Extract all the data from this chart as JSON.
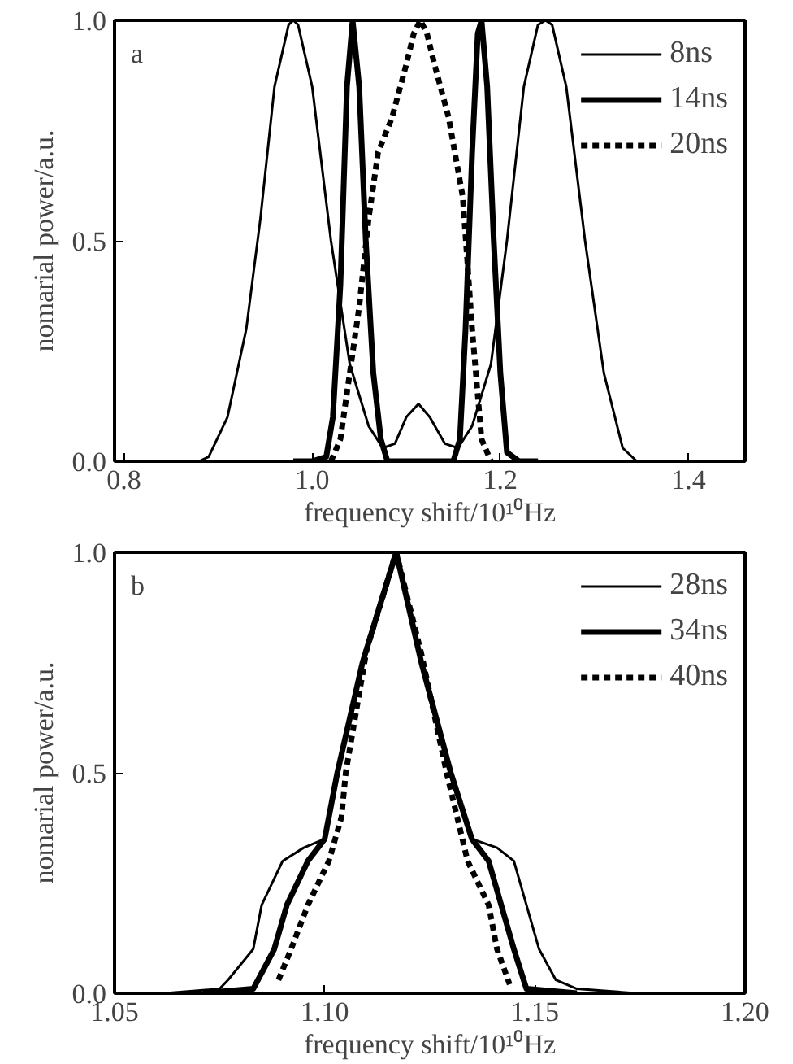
{
  "chart_data": [
    {
      "type": "line",
      "xlabel": "frequency shift/10¹⁰Hz",
      "ylabel": "nomarial power/a.u.",
      "annotations": [
        "a"
      ],
      "xlim": [
        0.79,
        1.46
      ],
      "ylim": [
        0,
        1
      ],
      "xticks": [
        {
          "value": 0.8,
          "label": "0.8"
        },
        {
          "value": 1.0,
          "label": "1.0"
        },
        {
          "value": 1.2,
          "label": "1.2"
        },
        {
          "value": 1.4,
          "label": "1.4"
        }
      ],
      "yticks": [
        {
          "value": 0,
          "label": "0.0"
        },
        {
          "value": 0.5,
          "label": "0.5"
        },
        {
          "value": 1,
          "label": "1.0"
        }
      ],
      "grid": false,
      "legend": "top right",
      "series": [
        {
          "name": "8ns",
          "color": "#000000",
          "line_style": "solid",
          "x": [
            0.85,
            0.88,
            0.89,
            0.91,
            0.93,
            0.945,
            0.96,
            0.975,
            0.98,
            0.985,
            1.0,
            1.02,
            1.04,
            1.06,
            1.075,
            1.088,
            1.1,
            1.113,
            1.125,
            1.141,
            1.155,
            1.17,
            1.19,
            1.207,
            1.225,
            1.24,
            1.248,
            1.255,
            1.27,
            1.29,
            1.31,
            1.33,
            1.345,
            1.39
          ],
          "values": [
            0,
            0,
            0.01,
            0.1,
            0.3,
            0.55,
            0.85,
            0.99,
            1.0,
            0.99,
            0.85,
            0.5,
            0.22,
            0.08,
            0.03,
            0.04,
            0.1,
            0.13,
            0.1,
            0.04,
            0.03,
            0.08,
            0.22,
            0.5,
            0.85,
            0.99,
            1.0,
            0.99,
            0.85,
            0.5,
            0.2,
            0.03,
            0.0,
            0
          ]
        },
        {
          "name": "14ns",
          "color": "#000000",
          "line_style": "solid",
          "x": [
            0.98,
            1.0,
            1.015,
            1.022,
            1.03,
            1.037,
            1.043,
            1.05,
            1.057,
            1.065,
            1.073,
            1.08,
            1.09,
            1.15,
            1.157,
            1.163,
            1.17,
            1.176,
            1.18,
            1.186,
            1.193,
            1.2,
            1.207,
            1.22,
            1.24
          ],
          "values": [
            0,
            0,
            0.01,
            0.1,
            0.4,
            0.85,
            1.0,
            0.85,
            0.5,
            0.2,
            0.05,
            0,
            0,
            0,
            0.05,
            0.3,
            0.7,
            0.97,
            1.0,
            0.85,
            0.5,
            0.2,
            0.02,
            0,
            0
          ]
        },
        {
          "name": "20ns",
          "color": "#000000",
          "line_style": "dotted",
          "x": [
            1.02,
            1.03,
            1.04,
            1.05,
            1.06,
            1.07,
            1.085,
            1.1,
            1.108,
            1.115,
            1.122,
            1.13,
            1.145,
            1.16,
            1.17,
            1.18,
            1.19
          ],
          "values": [
            0,
            0.05,
            0.2,
            0.35,
            0.55,
            0.7,
            0.78,
            0.9,
            0.97,
            1.0,
            0.97,
            0.9,
            0.78,
            0.6,
            0.3,
            0.05,
            0
          ]
        }
      ]
    },
    {
      "type": "line",
      "xlabel": "frequency shift/10¹⁰Hz",
      "ylabel": "nomarial power/a.u.",
      "annotations": [
        "b"
      ],
      "xlim": [
        1.05,
        1.2
      ],
      "ylim": [
        0,
        1
      ],
      "xticks": [
        {
          "value": 1.05,
          "label": "1.05"
        },
        {
          "value": 1.1,
          "label": "1.10"
        },
        {
          "value": 1.15,
          "label": "1.15"
        },
        {
          "value": 1.2,
          "label": "1.20"
        }
      ],
      "yticks": [
        {
          "value": 0,
          "label": "0.0"
        },
        {
          "value": 0.5,
          "label": "0.5"
        },
        {
          "value": 1,
          "label": "1.0"
        }
      ],
      "grid": false,
      "legend": "top right",
      "series": [
        {
          "name": "28ns",
          "color": "#000000",
          "line_style": "solid",
          "x": [
            1.062,
            1.075,
            1.077,
            1.083,
            1.085,
            1.09,
            1.095,
            1.1,
            1.103,
            1.109,
            1.117,
            1.123,
            1.13,
            1.135,
            1.141,
            1.145,
            1.148,
            1.151,
            1.155,
            1.16,
            1.174
          ],
          "values": [
            0,
            0.01,
            0.03,
            0.1,
            0.2,
            0.3,
            0.33,
            0.35,
            0.5,
            0.75,
            1.0,
            0.75,
            0.5,
            0.35,
            0.33,
            0.3,
            0.2,
            0.1,
            0.03,
            0.01,
            0
          ]
        },
        {
          "name": "34ns",
          "color": "#000000",
          "line_style": "solid",
          "x": [
            1.071,
            1.083,
            1.088,
            1.091,
            1.096,
            1.1,
            1.103,
            1.109,
            1.117,
            1.123,
            1.13,
            1.135,
            1.139,
            1.142,
            1.145,
            1.148,
            1.16
          ],
          "values": [
            0,
            0.01,
            0.1,
            0.2,
            0.3,
            0.35,
            0.5,
            0.75,
            1.0,
            0.75,
            0.5,
            0.35,
            0.3,
            0.2,
            0.1,
            0.01,
            0
          ]
        },
        {
          "name": "40ns",
          "color": "#000000",
          "line_style": "dotted",
          "x": [
            1.089,
            1.092,
            1.096,
            1.101,
            1.104,
            1.105,
            1.11,
            1.117,
            1.123,
            1.129,
            1.134,
            1.139,
            1.141,
            1.144
          ],
          "values": [
            0.03,
            0.1,
            0.2,
            0.3,
            0.4,
            0.5,
            0.78,
            1.0,
            0.77,
            0.5,
            0.3,
            0.2,
            0.1,
            0.02
          ]
        }
      ]
    }
  ]
}
